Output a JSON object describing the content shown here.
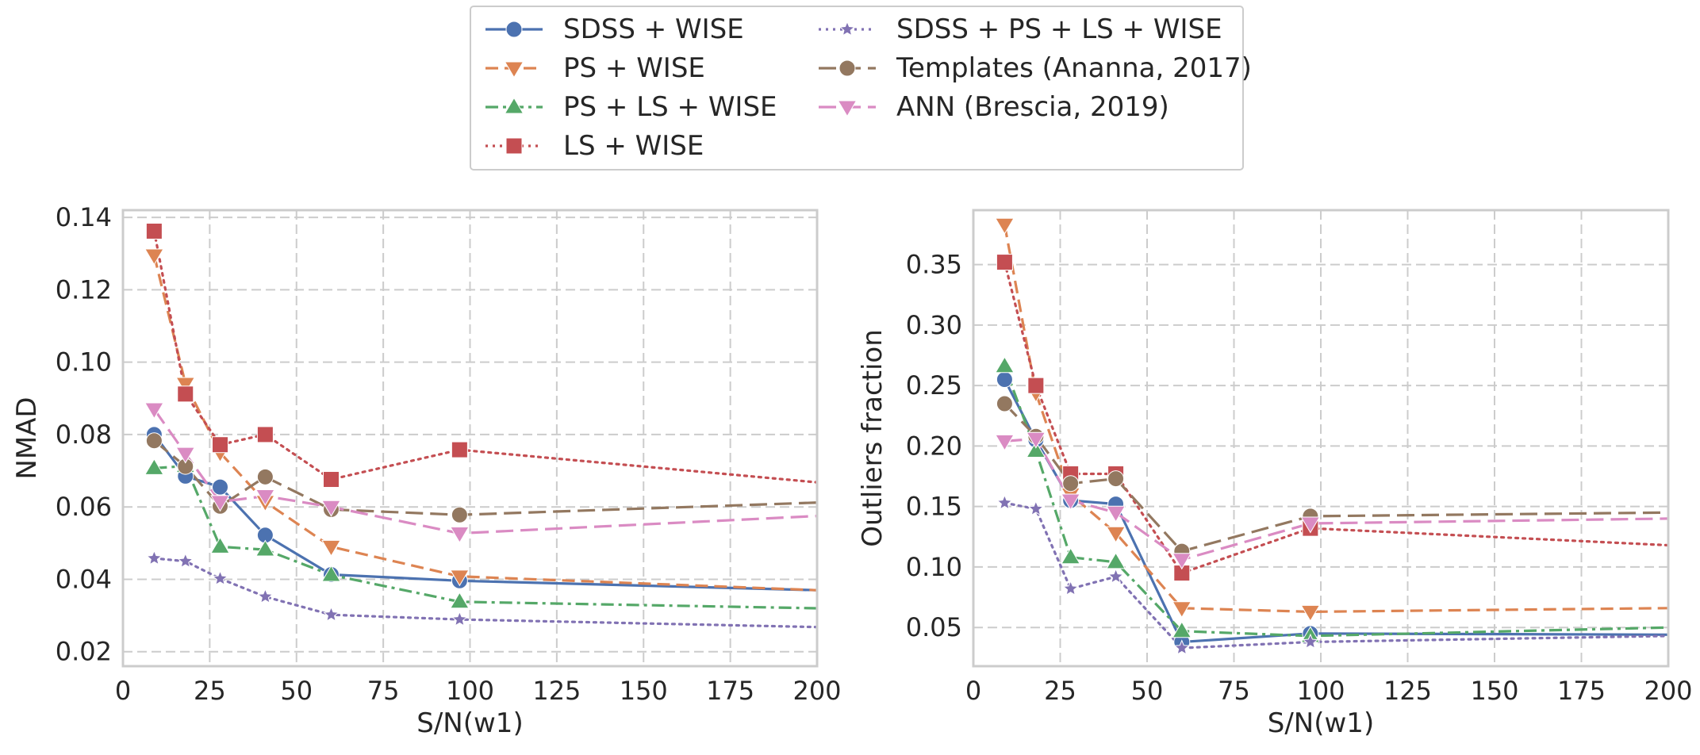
{
  "legend": [
    {
      "label": "SDSS + WISE",
      "color": "#4c72b0",
      "dash": "solid",
      "marker": "circle"
    },
    {
      "label": "PS + WISE",
      "color": "#dd8452",
      "dash": "dashed",
      "marker": "tri-down"
    },
    {
      "label": "PS + LS + WISE",
      "color": "#55a868",
      "dash": "dashdot",
      "marker": "tri-up"
    },
    {
      "label": "LS + WISE",
      "color": "#c44e52",
      "dash": "dotted",
      "marker": "square"
    },
    {
      "label": "SDSS + PS + LS + WISE",
      "color": "#8172b3",
      "dash": "dotted",
      "marker": "star"
    },
    {
      "label": "Templates (Ananna, 2017)",
      "color": "#937860",
      "dash": "longdash",
      "marker": "circle"
    },
    {
      "label": "ANN (Brescia, 2019)",
      "color": "#da8bc3",
      "dash": "longdash",
      "marker": "tri-down"
    }
  ],
  "chart_data": [
    {
      "type": "line",
      "xlabel": "S/N(w1)",
      "ylabel": "NMAD",
      "xlim": [
        0,
        200
      ],
      "ylim": [
        0.016,
        0.142
      ],
      "xticks": [
        "0",
        "25",
        "50",
        "75",
        "100",
        "125",
        "150",
        "175",
        "200"
      ],
      "yticks": [
        "0.02",
        "0.04",
        "0.06",
        "0.08",
        "0.10",
        "0.12",
        "0.14"
      ],
      "grid": true,
      "series": [
        {
          "name": "SDSS + WISE",
          "x": [
            9,
            18,
            28,
            41,
            60,
            97,
            200
          ],
          "y": [
            0.08,
            0.0685,
            0.0655,
            0.0522,
            0.0413,
            0.0396,
            0.037
          ]
        },
        {
          "name": "PS + WISE",
          "x": [
            9,
            18,
            28,
            41,
            60,
            97,
            200
          ],
          "y": [
            0.1295,
            0.094,
            0.075,
            0.0614,
            0.049,
            0.0408,
            0.037
          ]
        },
        {
          "name": "PS + LS + WISE",
          "x": [
            9,
            18,
            28,
            41,
            60,
            97,
            200
          ],
          "y": [
            0.0707,
            0.0713,
            0.049,
            0.0482,
            0.0412,
            0.0338,
            0.032
          ]
        },
        {
          "name": "LS + WISE",
          "x": [
            9,
            18,
            28,
            41,
            60,
            97,
            200
          ],
          "y": [
            0.1362,
            0.0912,
            0.0772,
            0.08,
            0.0676,
            0.0758,
            0.0668
          ]
        },
        {
          "name": "SDSS + PS + LS + WISE",
          "x": [
            9,
            18,
            28,
            41,
            60,
            97,
            200
          ],
          "y": [
            0.0458,
            0.045,
            0.0402,
            0.0352,
            0.0302,
            0.0289,
            0.0268
          ]
        },
        {
          "name": "Templates (Ananna, 2017)",
          "x": [
            9,
            18,
            28,
            41,
            60,
            97,
            200
          ],
          "y": [
            0.0783,
            0.0712,
            0.0602,
            0.0683,
            0.0593,
            0.0578,
            0.0612
          ]
        },
        {
          "name": "ANN (Brescia, 2019)",
          "x": [
            9,
            18,
            28,
            41,
            60,
            97,
            200
          ],
          "y": [
            0.087,
            0.0747,
            0.0614,
            0.063,
            0.06,
            0.0527,
            0.0575
          ]
        }
      ]
    },
    {
      "type": "line",
      "xlabel": "S/N(w1)",
      "ylabel": "Outliers fraction",
      "xlim": [
        0,
        200
      ],
      "ylim": [
        0.018,
        0.395
      ],
      "xticks": [
        "0",
        "25",
        "50",
        "75",
        "100",
        "125",
        "150",
        "175",
        "200"
      ],
      "yticks": [
        "0.05",
        "0.10",
        "0.15",
        "0.20",
        "0.25",
        "0.30",
        "0.35"
      ],
      "grid": true,
      "series": [
        {
          "name": "SDSS + WISE",
          "x": [
            9,
            18,
            28,
            41,
            60,
            97,
            200
          ],
          "y": [
            0.255,
            0.205,
            0.155,
            0.152,
            0.038,
            0.045,
            0.044
          ]
        },
        {
          "name": "PS + WISE",
          "x": [
            9,
            18,
            28,
            41,
            60,
            97,
            200
          ],
          "y": [
            0.383,
            0.244,
            0.16,
            0.128,
            0.066,
            0.063,
            0.066
          ]
        },
        {
          "name": "PS + LS + WISE",
          "x": [
            9,
            18,
            28,
            41,
            60,
            97,
            200
          ],
          "y": [
            0.266,
            0.196,
            0.108,
            0.104,
            0.047,
            0.043,
            0.05
          ]
        },
        {
          "name": "LS + WISE",
          "x": [
            9,
            18,
            28,
            41,
            60,
            97,
            200
          ],
          "y": [
            0.352,
            0.25,
            0.177,
            0.177,
            0.095,
            0.132,
            0.118
          ]
        },
        {
          "name": "SDSS + PS + LS + WISE",
          "x": [
            9,
            18,
            28,
            41,
            60,
            97,
            200
          ],
          "y": [
            0.153,
            0.148,
            0.082,
            0.092,
            0.033,
            0.038,
            0.043
          ]
        },
        {
          "name": "Templates (Ananna, 2017)",
          "x": [
            9,
            18,
            28,
            41,
            60,
            97,
            200
          ],
          "y": [
            0.235,
            0.208,
            0.169,
            0.173,
            0.113,
            0.142,
            0.145
          ]
        },
        {
          "name": "ANN (Brescia, 2019)",
          "x": [
            9,
            18,
            28,
            41,
            60,
            97,
            200
          ],
          "y": [
            0.204,
            0.206,
            0.155,
            0.145,
            0.106,
            0.136,
            0.14
          ]
        }
      ]
    }
  ]
}
